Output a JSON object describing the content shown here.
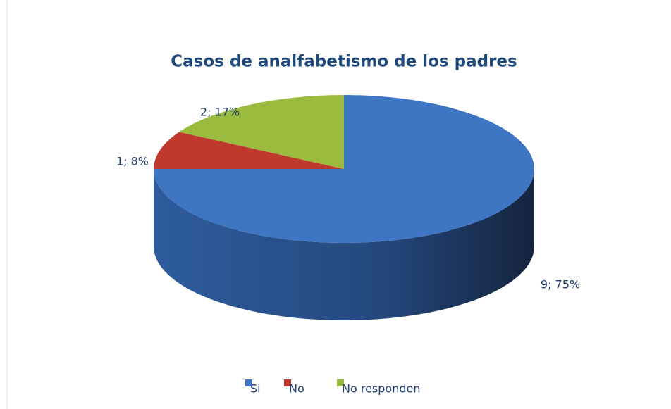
{
  "chart_data": {
    "type": "pie",
    "title": "Casos de analfabetismo de los padres",
    "categories": [
      "Si",
      "No",
      "No responden"
    ],
    "values": [
      9,
      1,
      2
    ],
    "value_labels": [
      "9; 75%",
      "1; 8%",
      "2; 17%"
    ],
    "colors": [
      "#3f76c4",
      "#c0392f",
      "#9bbb3f"
    ],
    "legend": "bottom"
  }
}
